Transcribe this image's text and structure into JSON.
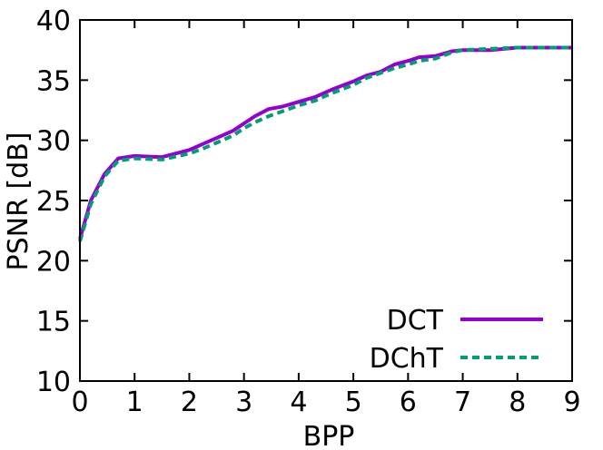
{
  "chart_data": {
    "type": "line",
    "xlabel": "BPP",
    "ylabel": "PSNR [dB]",
    "xlim": [
      0,
      9
    ],
    "ylim": [
      10,
      40
    ],
    "xticks": [
      "0",
      "1",
      "2",
      "3",
      "4",
      "5",
      "6",
      "7",
      "8",
      "9"
    ],
    "yticks": [
      "10",
      "15",
      "20",
      "25",
      "30",
      "35",
      "40"
    ],
    "grid": false,
    "legend_position": "bottom-right",
    "series": [
      {
        "name": "DCT",
        "color": "#9400d3",
        "style": "solid",
        "x": [
          0,
          0.2,
          0.45,
          0.7,
          1.0,
          1.5,
          2.0,
          2.3,
          2.6,
          2.8,
          3.0,
          3.2,
          3.45,
          3.7,
          4.0,
          4.3,
          4.6,
          5.0,
          5.25,
          5.5,
          5.75,
          6.0,
          6.2,
          6.5,
          6.8,
          7.0,
          7.5,
          8.0,
          8.5,
          9.0
        ],
        "y": [
          21.8,
          25.0,
          27.2,
          28.5,
          28.7,
          28.6,
          29.2,
          29.8,
          30.4,
          30.8,
          31.4,
          32.0,
          32.6,
          32.8,
          33.2,
          33.6,
          34.2,
          34.9,
          35.4,
          35.7,
          36.3,
          36.6,
          36.9,
          37.0,
          37.4,
          37.5,
          37.5,
          37.7,
          37.7,
          37.7
        ]
      },
      {
        "name": "DChT",
        "color": "#009e73",
        "style": "dashed",
        "x": [
          0,
          0.2,
          0.45,
          0.7,
          1.0,
          1.5,
          2.0,
          2.3,
          2.6,
          2.8,
          3.0,
          3.2,
          3.45,
          3.7,
          4.0,
          4.3,
          4.6,
          5.0,
          5.25,
          5.5,
          5.75,
          6.0,
          6.2,
          6.5,
          6.8,
          7.0,
          7.5,
          8.0,
          8.5,
          9.0
        ],
        "y": [
          21.6,
          24.7,
          27.0,
          28.3,
          28.5,
          28.4,
          28.9,
          29.4,
          30.0,
          30.4,
          31.0,
          31.5,
          32.0,
          32.4,
          32.9,
          33.3,
          33.9,
          34.6,
          35.2,
          35.6,
          36.0,
          36.3,
          36.6,
          36.8,
          37.3,
          37.5,
          37.6,
          37.7,
          37.7,
          37.7
        ]
      }
    ]
  }
}
